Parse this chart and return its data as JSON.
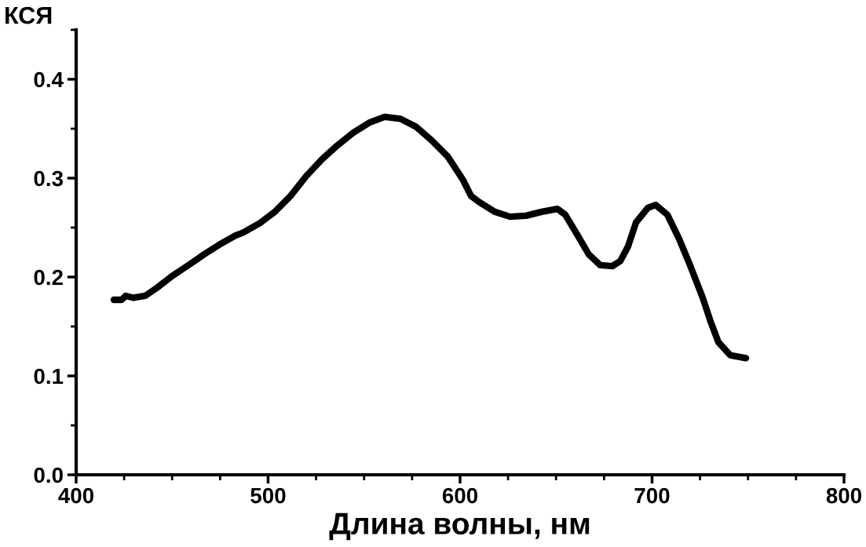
{
  "chart_data": {
    "type": "line",
    "ylabel": "КСЯ",
    "xlabel": "Длина волны, нм",
    "xlim": [
      400,
      800
    ],
    "xticks": [
      400,
      500,
      600,
      700,
      800
    ],
    "ylim": [
      0,
      0.45
    ],
    "yticks": [
      {
        "value": 0,
        "label": "0.0"
      },
      0.1,
      0.2,
      0.3,
      0.4
    ],
    "grid": false,
    "legend": false,
    "marker": "none",
    "line_style": "solid",
    "series": [
      {
        "color": "#000000",
        "x": [
          419.6,
          423.7,
          425.8,
          429.9,
          436,
          442,
          450,
          458.5,
          466.7,
          474.8,
          483,
          487,
          495.3,
          503.5,
          511.7,
          519.8,
          528,
          536,
          544.4,
          552.6,
          560.7,
          568.9,
          577,
          585.3,
          593.5,
          601.6,
          605.7,
          609.8,
          618,
          626,
          634.4,
          642.5,
          650.7,
          654.8,
          661,
          667,
          673,
          679.3,
          683.4,
          687.5,
          691.6,
          697.8,
          701.8,
          708,
          714,
          720,
          726.4,
          730.5,
          734.6,
          740.7,
          748.9
        ],
        "values": [
          0.177,
          0.177,
          0.181,
          0.179,
          0.181,
          0.189,
          0.201,
          0.212,
          0.223,
          0.233,
          0.242,
          0.245,
          0.254,
          0.266,
          0.282,
          0.302,
          0.319,
          0.333,
          0.346,
          0.356,
          0.362,
          0.36,
          0.352,
          0.338,
          0.322,
          0.298,
          0.282,
          0.276,
          0.266,
          0.261,
          0.262,
          0.266,
          0.269,
          0.263,
          0.243,
          0.223,
          0.212,
          0.211,
          0.216,
          0.231,
          0.255,
          0.27,
          0.273,
          0.263,
          0.239,
          0.211,
          0.179,
          0.155,
          0.134,
          0.121,
          0.118
        ]
      }
    ]
  }
}
